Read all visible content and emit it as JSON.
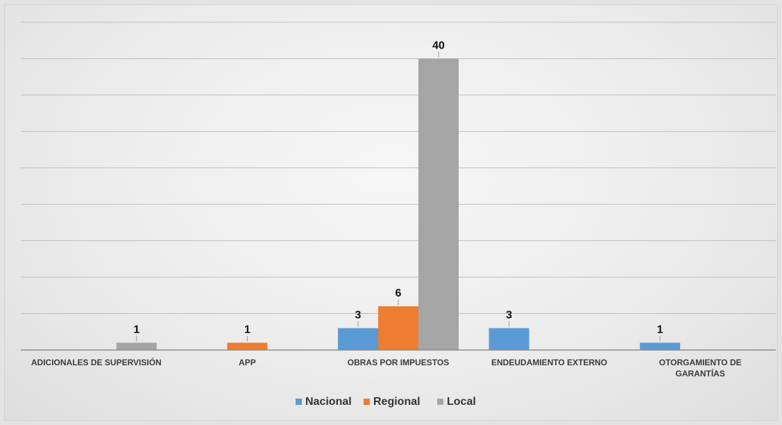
{
  "chart_data": {
    "type": "bar",
    "title": "",
    "xlabel": "",
    "ylabel": "",
    "categories": [
      [
        "ADICIONALES DE SUPERVISIÓN"
      ],
      [
        "APP"
      ],
      [
        "OBRAS POR IMPUESTOS"
      ],
      [
        "ENDEUDAMIENTO EXTERNO"
      ],
      [
        "OTORGAMIENTO DE",
        "GARANTÍAS"
      ]
    ],
    "series": [
      {
        "name": "Nacional",
        "color": "#5b9bd5",
        "values": [
          0,
          0,
          3,
          3,
          1
        ]
      },
      {
        "name": "Regional",
        "color": "#ed7d31",
        "values": [
          0,
          1,
          6,
          0,
          0
        ]
      },
      {
        "name": "Local",
        "color": "#a5a5a5",
        "values": [
          1,
          0,
          40,
          0,
          0
        ]
      }
    ],
    "ylim": [
      0,
      45
    ],
    "grid": true,
    "legend_position": "bottom"
  }
}
